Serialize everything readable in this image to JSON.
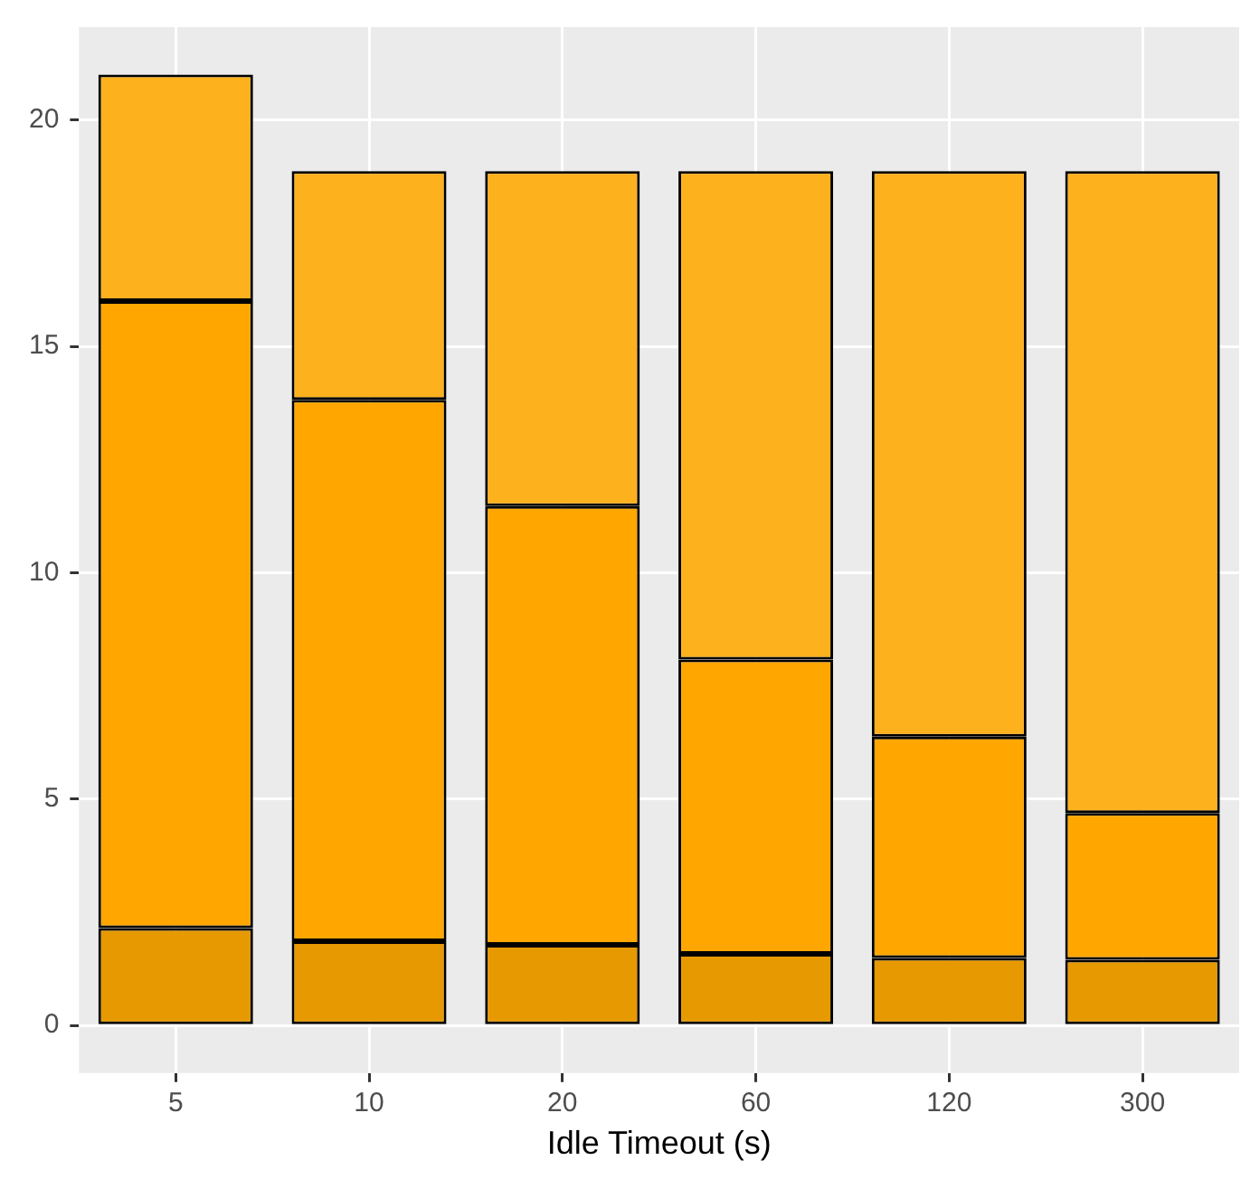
{
  "chart_data": {
    "type": "bar",
    "stacked": true,
    "xlabel": "Idle Timeout (s)",
    "categories": [
      "5",
      "10",
      "20",
      "60",
      "120",
      "300"
    ],
    "series": [
      {
        "color": "#e69900",
        "values": [
          2.15,
          1.86,
          1.78,
          1.58,
          1.49,
          1.45
        ]
      },
      {
        "color": "#ffa700",
        "values": [
          13.85,
          11.96,
          9.69,
          6.5,
          4.89,
          3.24
        ]
      },
      {
        "color": "#fdb11d",
        "values": [
          5.0,
          5.05,
          7.4,
          10.79,
          12.49,
          14.18
        ]
      }
    ],
    "ylim": [
      -1.05,
      22.05
    ],
    "yticks": [
      0,
      5,
      10,
      15,
      20
    ],
    "grid": true,
    "legend": false
  }
}
